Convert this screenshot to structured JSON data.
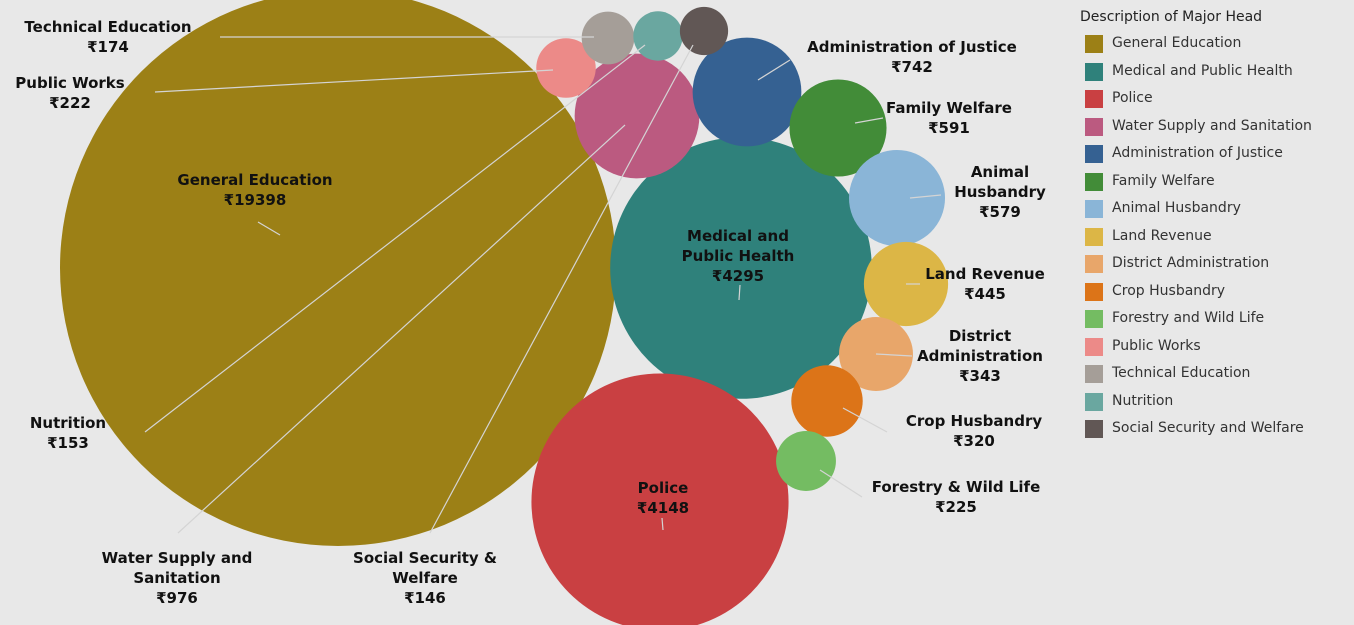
{
  "chart_data": {
    "type": "bubble",
    "legend_title": "Description of Major Head",
    "categories": [
      "General Education",
      "Medical and Public Health",
      "Police",
      "Water Supply and Sanitation",
      "Administration of Justice",
      "Family Welfare",
      "Animal Husbandry",
      "Land Revenue",
      "District Administration",
      "Crop Husbandry",
      "Forestry and Wild Life",
      "Public Works",
      "Technical Education",
      "Nutrition",
      "Social Security and Welfare"
    ],
    "labels": [
      "General Education",
      "Medical and\nPublic Health",
      "Police",
      "Water Supply and\nSanitation",
      "Administration of Justice",
      "Family Welfare",
      "Animal\nHusbandry",
      "Land Revenue",
      "District\nAdministration",
      "Crop Husbandry",
      "Forestry & Wild Life",
      "Public Works",
      "Technical Education",
      "Nutrition",
      "Social Security &\nWelfare"
    ],
    "values": [
      19398,
      4295,
      4148,
      976,
      742,
      591,
      579,
      445,
      343,
      320,
      225,
      222,
      174,
      153,
      146
    ],
    "value_labels": [
      "₹19398",
      "₹4295",
      "₹4148",
      "₹976",
      "₹742",
      "₹591",
      "₹579",
      "₹445",
      "₹343",
      "₹320",
      "₹225",
      "₹222",
      "₹174",
      "₹153",
      "₹146"
    ],
    "colors": [
      "#9c8016",
      "#2f817b",
      "#c94042",
      "#bb5a80",
      "#356192",
      "#428c38",
      "#8ab5d7",
      "#dcb646",
      "#e8a66a",
      "#dc7418",
      "#74bc62",
      "#ec8a88",
      "#a59e98",
      "#6aa7a0",
      "#615755"
    ]
  }
}
